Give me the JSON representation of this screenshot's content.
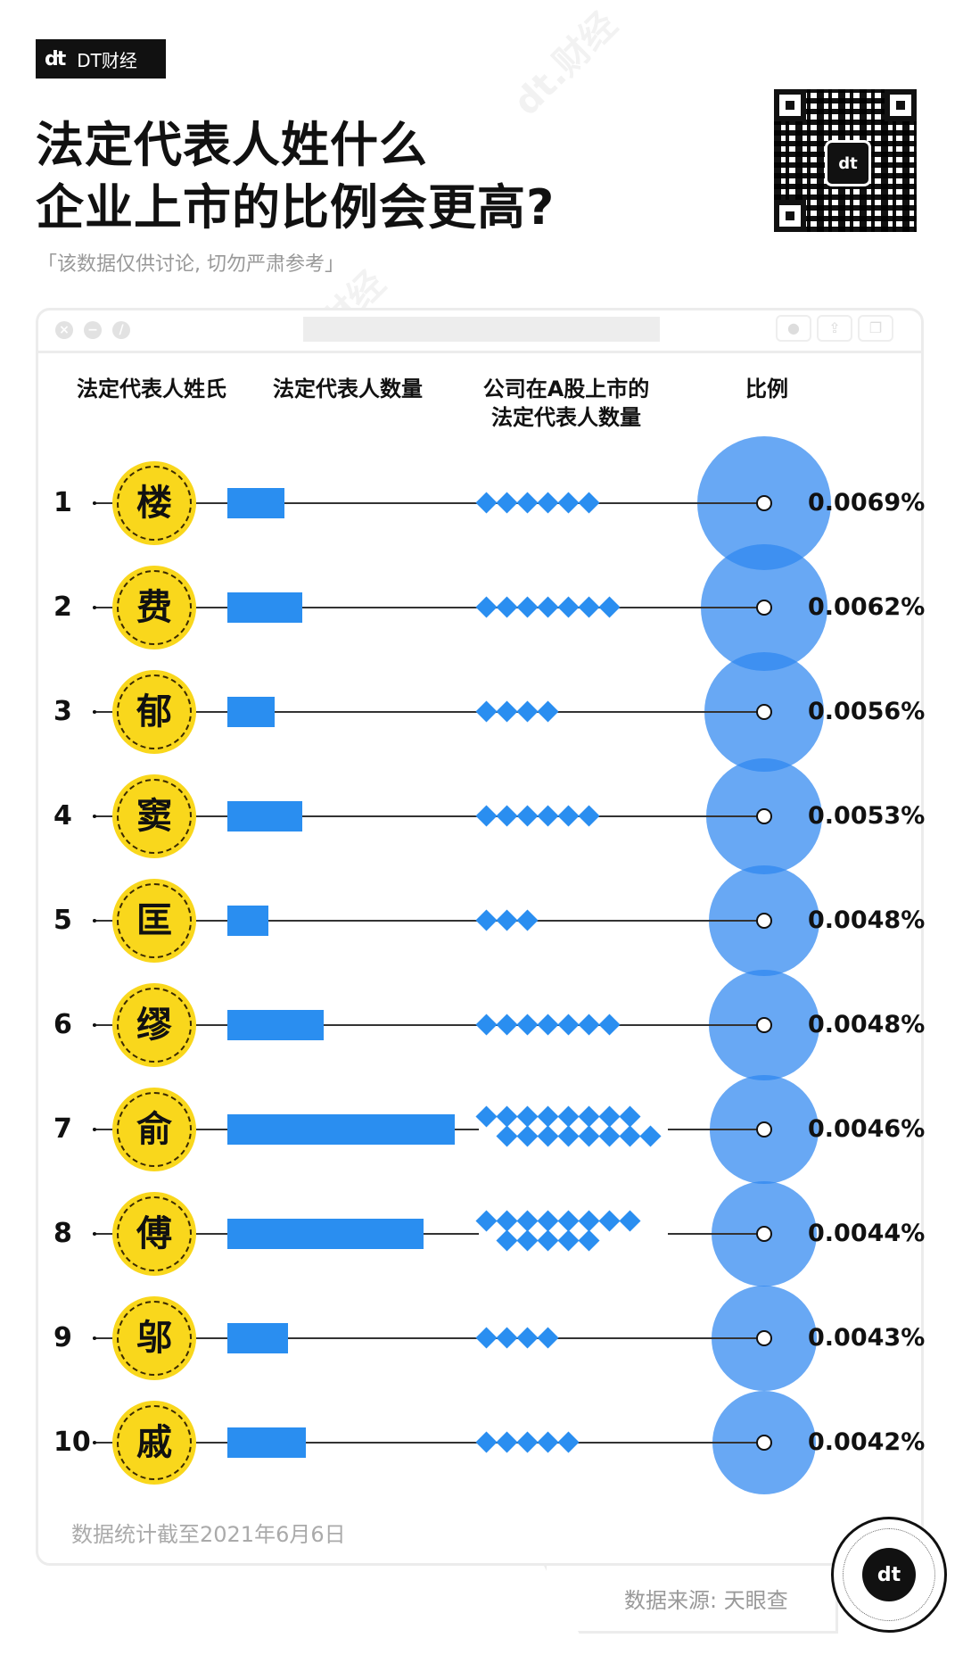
{
  "brand": {
    "logo": "dt",
    "name": "DT财经"
  },
  "title": {
    "line1": "法定代表人姓什么",
    "line2": "企业上市的比例会更高?"
  },
  "subtitle": "「该数据仅供讨论, 切勿严肃参考」",
  "window": {
    "controls": [
      "close",
      "minimize",
      "maximize"
    ],
    "toolbar": [
      "record",
      "share",
      "window"
    ]
  },
  "columns": {
    "surname": "法定代表人姓氏",
    "count": "法定代表人数量",
    "listed_line1": "公司在A股上市的",
    "listed_line2": "法定代表人数量",
    "ratio": "比例"
  },
  "rows": [
    {
      "rank": "1",
      "surname": "楼",
      "count_bar": 64,
      "listed": 6,
      "ratio": "0.0069%"
    },
    {
      "rank": "2",
      "surname": "费",
      "count_bar": 84,
      "listed": 7,
      "ratio": "0.0062%"
    },
    {
      "rank": "3",
      "surname": "郁",
      "count_bar": 53,
      "listed": 4,
      "ratio": "0.0056%"
    },
    {
      "rank": "4",
      "surname": "窦",
      "count_bar": 84,
      "listed": 6,
      "ratio": "0.0053%"
    },
    {
      "rank": "5",
      "surname": "匡",
      "count_bar": 46,
      "listed": 3,
      "ratio": "0.0048%"
    },
    {
      "rank": "6",
      "surname": "缪",
      "count_bar": 108,
      "listed": 7,
      "ratio": "0.0048%"
    },
    {
      "rank": "7",
      "surname": "俞",
      "count_bar": 255,
      "listed": 16,
      "ratio": "0.0046%"
    },
    {
      "rank": "8",
      "surname": "傅",
      "count_bar": 220,
      "listed": 13,
      "ratio": "0.0044%"
    },
    {
      "rank": "9",
      "surname": "邬",
      "count_bar": 68,
      "listed": 4,
      "ratio": "0.0043%"
    },
    {
      "rank": "10",
      "surname": "戚",
      "count_bar": 88,
      "listed": 5,
      "ratio": "0.0042%"
    }
  ],
  "footnote": "数据统计截至2021年6月6日",
  "source": "数据来源: 天眼查",
  "colors": {
    "bar": "#2a8ef0",
    "bubble": "#5aa8f5",
    "coin": "#f9d71c",
    "text": "#111111"
  },
  "chart_data": {
    "type": "table",
    "title": "法定代表人姓什么 企业上市的比例会更高?",
    "subtitle": "「该数据仅供讨论, 切勿严肃参考」",
    "categories": [
      "楼",
      "费",
      "郁",
      "窦",
      "匡",
      "缪",
      "俞",
      "傅",
      "邬",
      "戚"
    ],
    "series": [
      {
        "name": "法定代表人数量 (relative bar length, px)",
        "values": [
          64,
          84,
          53,
          84,
          46,
          108,
          255,
          220,
          68,
          88
        ]
      },
      {
        "name": "公司在A股上市的法定代表人数量",
        "values": [
          6,
          7,
          4,
          6,
          3,
          7,
          16,
          13,
          4,
          5
        ]
      },
      {
        "name": "比例 (%)",
        "values": [
          0.0069,
          0.0062,
          0.0056,
          0.0053,
          0.0048,
          0.0048,
          0.0046,
          0.0044,
          0.0043,
          0.0042
        ]
      }
    ],
    "note": "数据统计截至2021年6月6日",
    "source": "天眼查"
  }
}
